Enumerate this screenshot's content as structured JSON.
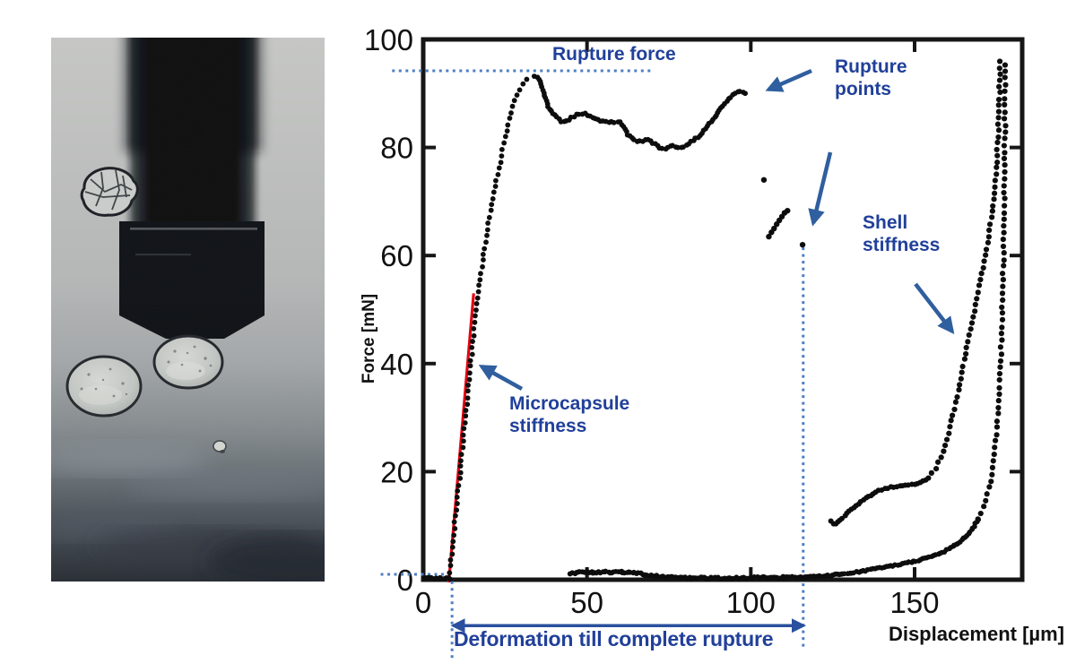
{
  "figure": {
    "photo": {
      "name": "microcapsule-compression-micrograph"
    },
    "colors": {
      "annotation_text": "#21409a",
      "annotation_arrow": "#2f5f9e",
      "guide_dotted": "#4d7ec5",
      "fit_line": "#e30613",
      "scatter_dots": "#0d0d0d",
      "axis": "#161616"
    }
  },
  "chart_data": {
    "type": "scatter",
    "xlabel": "Displacement [µm]",
    "ylabel": "Force [mN]",
    "xlim": [
      0,
      183
    ],
    "ylim": [
      0,
      100
    ],
    "xticks": [
      0,
      50,
      100,
      150
    ],
    "yticks": [
      0,
      20,
      40,
      60,
      80,
      100
    ],
    "grid": false,
    "legend": false,
    "callouts": {
      "rupture_force_mN": 94,
      "rupture_onset_displacement_um": 9,
      "complete_rupture_displacement_um": 116,
      "rupture_point_values_mN": [
        90,
        74,
        68,
        62
      ]
    },
    "annotations": {
      "rupture_force": {
        "label": "Rupture force"
      },
      "rupture_points": {
        "label": "Rupture\npoints"
      },
      "shell_stiffness": {
        "label": "Shell\nstiffness"
      },
      "microcapsule_stiffness": {
        "label": "Microcapsule\nstiffness"
      },
      "deformation": {
        "label": "Deformation till complete rupture"
      }
    },
    "fit_line": {
      "name": "microcapsule-stiffness-fit",
      "x": [
        7.8,
        15.4
      ],
      "y": [
        -0.5,
        53
      ]
    },
    "guides": {
      "rupture_level": {
        "y": 94.2,
        "x_range": [
          -9.5,
          69.5
        ]
      },
      "zero_level": {
        "y": 1.0,
        "x_range": [
          -13,
          7.7
        ]
      },
      "rupture_onset_vline": {
        "x": 8.8,
        "y_range": [
          -0.3,
          -15
        ]
      },
      "complete_rupture_vline": {
        "x": 116,
        "y_range": [
          61.5,
          -13
        ]
      },
      "deformation_arrow": {
        "y": -8.5,
        "x_range": [
          9.2,
          116
        ]
      }
    },
    "series": [
      {
        "name": "pre-contact-baseline",
        "spacing_px": 2.4,
        "dot_r": 2.8,
        "jitter": 1.4,
        "points": [
          [
            0.5,
            0.3
          ],
          [
            8.2,
            0.3
          ]
        ]
      },
      {
        "name": "loading-rise",
        "spacing_px": 7,
        "dot_r": 2.9,
        "jitter": 1.6,
        "points": [
          [
            8,
            0.2
          ],
          [
            8.6,
            4
          ],
          [
            9.2,
            8
          ],
          [
            9.9,
            12
          ],
          [
            10.6,
            16
          ],
          [
            11.3,
            20
          ],
          [
            12.1,
            25
          ],
          [
            12.9,
            30
          ],
          [
            13.7,
            35
          ],
          [
            14.5,
            40
          ],
          [
            15.3,
            45
          ],
          [
            16.1,
            50
          ],
          [
            17,
            54
          ],
          [
            17.9,
            58
          ],
          [
            18.8,
            62
          ],
          [
            19.7,
            65
          ],
          [
            20.7,
            69
          ],
          [
            21.7,
            72
          ],
          [
            22.7,
            75
          ],
          [
            23.7,
            78
          ],
          [
            24.7,
            81
          ],
          [
            25.8,
            84
          ],
          [
            26.9,
            86.5
          ],
          [
            28.1,
            88.8
          ],
          [
            29.3,
            90.6
          ],
          [
            30.5,
            91.9
          ],
          [
            31.7,
            92.7
          ],
          [
            32.9,
            93.1
          ],
          [
            34,
            93.3
          ]
        ]
      },
      {
        "name": "rupture-plateau",
        "spacing_px": 3.2,
        "dot_r": 2.9,
        "jitter": 1.7,
        "points": [
          [
            34,
            93.3
          ],
          [
            35.2,
            92.8
          ],
          [
            36.2,
            91.5
          ],
          [
            37,
            89.8
          ],
          [
            37.8,
            88.2
          ],
          [
            38.6,
            86.9
          ],
          [
            39.6,
            86.2
          ],
          [
            40.8,
            85.5
          ],
          [
            42,
            84.9
          ],
          [
            43.5,
            84.8
          ],
          [
            45,
            85.4
          ],
          [
            46.5,
            86
          ],
          [
            48,
            86.3
          ],
          [
            49.5,
            86.2
          ],
          [
            51,
            85.8
          ],
          [
            52.5,
            85.3
          ],
          [
            54,
            84.9
          ],
          [
            56,
            84.7
          ],
          [
            58,
            84.7
          ],
          [
            60,
            84.7
          ],
          [
            61,
            84.2
          ],
          [
            61.8,
            83.1
          ],
          [
            62.8,
            82.1
          ],
          [
            64,
            81.5
          ],
          [
            65.5,
            81.1
          ],
          [
            67,
            81.1
          ],
          [
            68,
            81.4
          ],
          [
            69,
            81.3
          ],
          [
            70.5,
            80.7
          ],
          [
            72,
            80
          ],
          [
            73.5,
            79.7
          ],
          [
            75,
            80.1
          ],
          [
            76.5,
            80.4
          ],
          [
            78,
            79.9
          ],
          [
            79.5,
            80.2
          ],
          [
            81,
            80.8
          ],
          [
            82.5,
            81.3
          ],
          [
            84,
            82
          ],
          [
            85.5,
            82.9
          ],
          [
            87,
            84
          ],
          [
            88.5,
            85.2
          ],
          [
            90,
            86.5
          ],
          [
            91.5,
            87.8
          ],
          [
            93,
            88.9
          ],
          [
            94.5,
            89.7
          ],
          [
            96,
            90.3
          ],
          [
            97.2,
            90.5
          ],
          [
            98.4,
            90
          ]
        ]
      },
      {
        "name": "rupture-points-cluster",
        "individual": true,
        "dot_r": 3.2,
        "jitter": 0,
        "points": [
          [
            104,
            74
          ],
          [
            105.5,
            63.5
          ],
          [
            106.3,
            64.3
          ],
          [
            107.1,
            65
          ],
          [
            107.9,
            65.8
          ],
          [
            108.7,
            66.5
          ],
          [
            109.5,
            67.2
          ],
          [
            110.3,
            67.9
          ],
          [
            111.2,
            68.3
          ],
          [
            115.8,
            62
          ]
        ]
      },
      {
        "name": "post-rupture-baseline",
        "spacing_px": 2.1,
        "dot_r": 2.9,
        "jitter": 2.2,
        "points": [
          [
            45,
            1.2
          ],
          [
            50,
            1.4
          ],
          [
            56,
            1.4
          ],
          [
            62,
            1.4
          ],
          [
            66,
            1.1
          ],
          [
            70,
            0.7
          ],
          [
            75,
            0.5
          ],
          [
            81,
            0.3
          ],
          [
            88,
            0.3
          ],
          [
            95,
            0.3
          ],
          [
            102,
            0.4
          ],
          [
            109,
            0.4
          ],
          [
            116,
            0.5
          ],
          [
            122,
            0.7
          ],
          [
            128,
            1
          ]
        ]
      },
      {
        "name": "final-compression-tail",
        "spacing_px": 2.6,
        "dot_r": 2.9,
        "jitter": 1.6,
        "points": [
          [
            128,
            1
          ],
          [
            134,
            1.6
          ],
          [
            140,
            2.2
          ],
          [
            146,
            2.9
          ],
          [
            151,
            3.6
          ],
          [
            155,
            4.3
          ],
          [
            159,
            5.2
          ],
          [
            162,
            6.2
          ],
          [
            164.5,
            7.3
          ],
          [
            166.5,
            8.5
          ],
          [
            168.2,
            9.9
          ],
          [
            169.5,
            11.2
          ]
        ]
      },
      {
        "name": "final-compression-steep",
        "spacing_px": 7.5,
        "dot_r": 3.1,
        "jitter": 1.6,
        "points": [
          [
            169.5,
            11.2
          ],
          [
            171,
            13.3
          ],
          [
            172.2,
            15.7
          ],
          [
            173.2,
            18.5
          ],
          [
            174,
            21.7
          ],
          [
            174.7,
            25.2
          ],
          [
            175.3,
            29.2
          ],
          [
            175.8,
            33.7
          ],
          [
            176.2,
            38.7
          ],
          [
            176.5,
            44.2
          ],
          [
            176.8,
            50.2
          ],
          [
            177,
            56.2
          ],
          [
            177.2,
            62.2
          ],
          [
            177.35,
            68.2
          ],
          [
            177.45,
            74.2
          ],
          [
            177.55,
            80.2
          ],
          [
            177.62,
            86.2
          ],
          [
            177.68,
            92.2
          ],
          [
            177.7,
            96.5
          ]
        ]
      },
      {
        "name": "shell-loading-shoulder",
        "spacing_px": 3.4,
        "dot_r": 3.0,
        "jitter": 1.6,
        "points": [
          [
            124.5,
            10.8
          ],
          [
            125.3,
            10.2
          ],
          [
            126.2,
            10.5
          ],
          [
            127.2,
            11
          ],
          [
            128.4,
            11.7
          ],
          [
            129.8,
            12.5
          ],
          [
            131.4,
            13.4
          ],
          [
            133,
            14.2
          ],
          [
            134.8,
            15
          ],
          [
            136.6,
            15.7
          ],
          [
            138.5,
            16.3
          ],
          [
            140.5,
            16.8
          ],
          [
            142.5,
            17.1
          ],
          [
            144.5,
            17.3
          ],
          [
            146.5,
            17.4
          ],
          [
            148.5,
            17.5
          ],
          [
            150.5,
            17.7
          ],
          [
            152.5,
            18.1
          ],
          [
            154,
            18.8
          ]
        ]
      },
      {
        "name": "shell-loading-steep",
        "spacing_px": 7,
        "dot_r": 3.1,
        "jitter": 1.6,
        "points": [
          [
            154,
            18.8
          ],
          [
            155.5,
            19.8
          ],
          [
            156.8,
            21
          ],
          [
            158,
            22.6
          ],
          [
            159,
            24.3
          ],
          [
            160,
            26.3
          ],
          [
            161,
            28.7
          ],
          [
            162,
            31.3
          ],
          [
            163,
            34
          ],
          [
            164,
            37
          ],
          [
            165,
            40
          ],
          [
            166,
            43
          ],
          [
            167,
            46
          ],
          [
            168,
            49
          ],
          [
            169,
            52
          ],
          [
            170,
            55
          ],
          [
            171,
            58
          ],
          [
            171.9,
            61
          ],
          [
            172.7,
            64
          ],
          [
            173.4,
            67
          ],
          [
            174,
            70
          ],
          [
            174.5,
            73
          ],
          [
            174.9,
            76
          ],
          [
            175.2,
            79
          ],
          [
            175.5,
            82
          ],
          [
            175.7,
            85
          ],
          [
            175.85,
            88
          ],
          [
            175.95,
            91
          ],
          [
            176,
            94
          ],
          [
            176.05,
            96.3
          ]
        ]
      }
    ]
  }
}
